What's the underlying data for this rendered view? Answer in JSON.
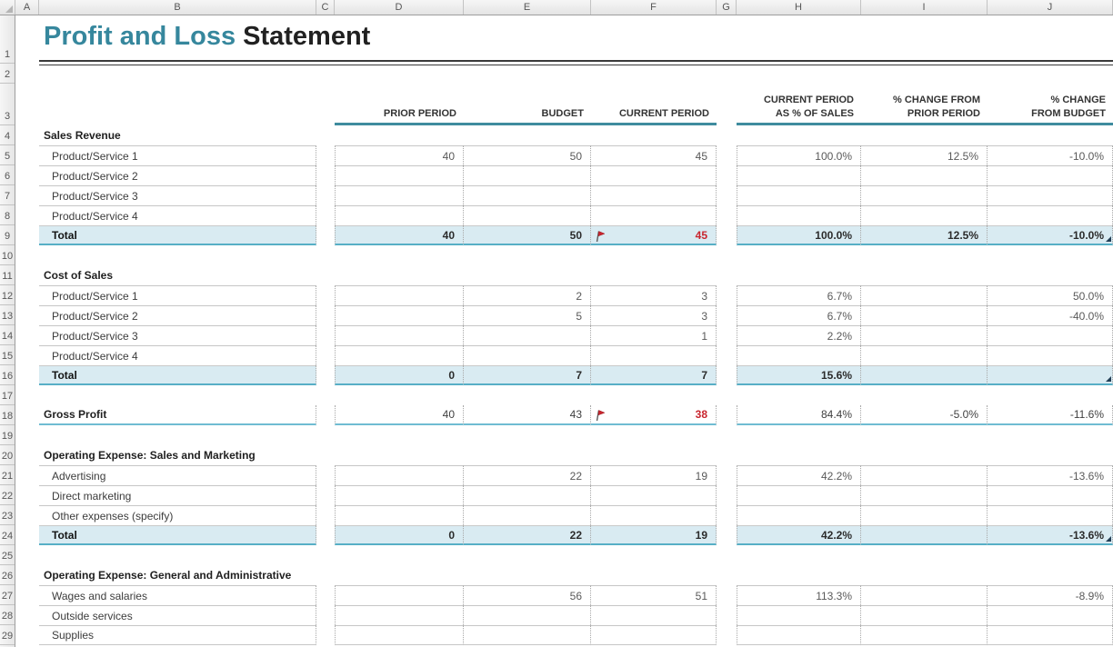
{
  "title": {
    "accent": "Profit and Loss",
    "rest": " Statement"
  },
  "colors": {
    "accent": "#36879D",
    "header_line": "#3F8C9E",
    "total_fill": "#D9EBF2",
    "total_border": "#57AFC6",
    "gross_border": "#6FBCD2",
    "negative_red": "#C9252E"
  },
  "column_letters": [
    "A",
    "B",
    "C",
    "D",
    "E",
    "F",
    "G",
    "H",
    "I",
    "J"
  ],
  "row_numbers": [
    1,
    2,
    3,
    4,
    5,
    6,
    7,
    8,
    9,
    10,
    11,
    12,
    13,
    14,
    15,
    16,
    17,
    18,
    19,
    20,
    21,
    22,
    23,
    24,
    25,
    26,
    27,
    28,
    29
  ],
  "header_row": {
    "d": "PRIOR PERIOD",
    "e": "BUDGET",
    "f": "CURRENT PERIOD",
    "h": "CURRENT PERIOD\nAS % OF SALES",
    "i": "% CHANGE FROM\nPRIOR PERIOD",
    "j": "% CHANGE\nFROM BUDGET"
  },
  "rows": [
    {
      "n": 4,
      "type": "section",
      "label": "Sales Revenue"
    },
    {
      "n": 5,
      "type": "item",
      "label": "Product/Service 1",
      "values": {
        "d": "40",
        "e": "50",
        "f": "45",
        "h": "100.0%",
        "i": "12.5%",
        "j": "-10.0%"
      }
    },
    {
      "n": 6,
      "type": "item",
      "label": "Product/Service 2",
      "values": {}
    },
    {
      "n": 7,
      "type": "item",
      "label": "Product/Service 3",
      "values": {}
    },
    {
      "n": 8,
      "type": "item",
      "label": "Product/Service 4",
      "values": {}
    },
    {
      "n": 9,
      "type": "total",
      "label": "Total",
      "values": {
        "d": "40",
        "e": "50",
        "f": "45",
        "h": "100.0%",
        "i": "12.5%",
        "j": "-10.0%"
      },
      "flag": true,
      "red_f": true,
      "corner": true
    },
    {
      "n": 10,
      "type": "blank"
    },
    {
      "n": 11,
      "type": "section",
      "label": "Cost of Sales"
    },
    {
      "n": 12,
      "type": "item",
      "label": "Product/Service 1",
      "values": {
        "e": "2",
        "f": "3",
        "h": "6.7%",
        "j": "50.0%"
      }
    },
    {
      "n": 13,
      "type": "item",
      "label": "Product/Service 2",
      "values": {
        "e": "5",
        "f": "3",
        "h": "6.7%",
        "j": "-40.0%"
      }
    },
    {
      "n": 14,
      "type": "item",
      "label": "Product/Service 3",
      "values": {
        "f": "1",
        "h": "2.2%"
      }
    },
    {
      "n": 15,
      "type": "item",
      "label": "Product/Service 4",
      "values": {}
    },
    {
      "n": 16,
      "type": "total",
      "label": "Total",
      "values": {
        "d": "0",
        "e": "7",
        "f": "7",
        "h": "15.6%"
      },
      "corner": true
    },
    {
      "n": 17,
      "type": "blank"
    },
    {
      "n": 18,
      "type": "gross",
      "label": "Gross Profit",
      "values": {
        "d": "40",
        "e": "43",
        "f": "38",
        "h": "84.4%",
        "i": "-5.0%",
        "j": "-11.6%"
      },
      "flag": true,
      "red_f": true
    },
    {
      "n": 19,
      "type": "blank"
    },
    {
      "n": 20,
      "type": "section",
      "label": "Operating Expense: Sales and Marketing"
    },
    {
      "n": 21,
      "type": "item",
      "label": "Advertising",
      "values": {
        "e": "22",
        "f": "19",
        "h": "42.2%",
        "j": "-13.6%"
      }
    },
    {
      "n": 22,
      "type": "item",
      "label": "Direct marketing",
      "values": {}
    },
    {
      "n": 23,
      "type": "item",
      "label": "Other expenses (specify)",
      "values": {}
    },
    {
      "n": 24,
      "type": "total",
      "label": "Total",
      "values": {
        "d": "0",
        "e": "22",
        "f": "19",
        "h": "42.2%",
        "j": "-13.6%"
      },
      "corner": true
    },
    {
      "n": 25,
      "type": "blank"
    },
    {
      "n": 26,
      "type": "section",
      "label": "Operating Expense: General and Administrative"
    },
    {
      "n": 27,
      "type": "item",
      "label": "Wages and salaries",
      "values": {
        "e": "56",
        "f": "51",
        "h": "113.3%",
        "j": "-8.9%"
      }
    },
    {
      "n": 28,
      "type": "item",
      "label": "Outside services",
      "values": {}
    },
    {
      "n": 29,
      "type": "item",
      "label": "Supplies",
      "values": {},
      "last": true
    }
  ]
}
